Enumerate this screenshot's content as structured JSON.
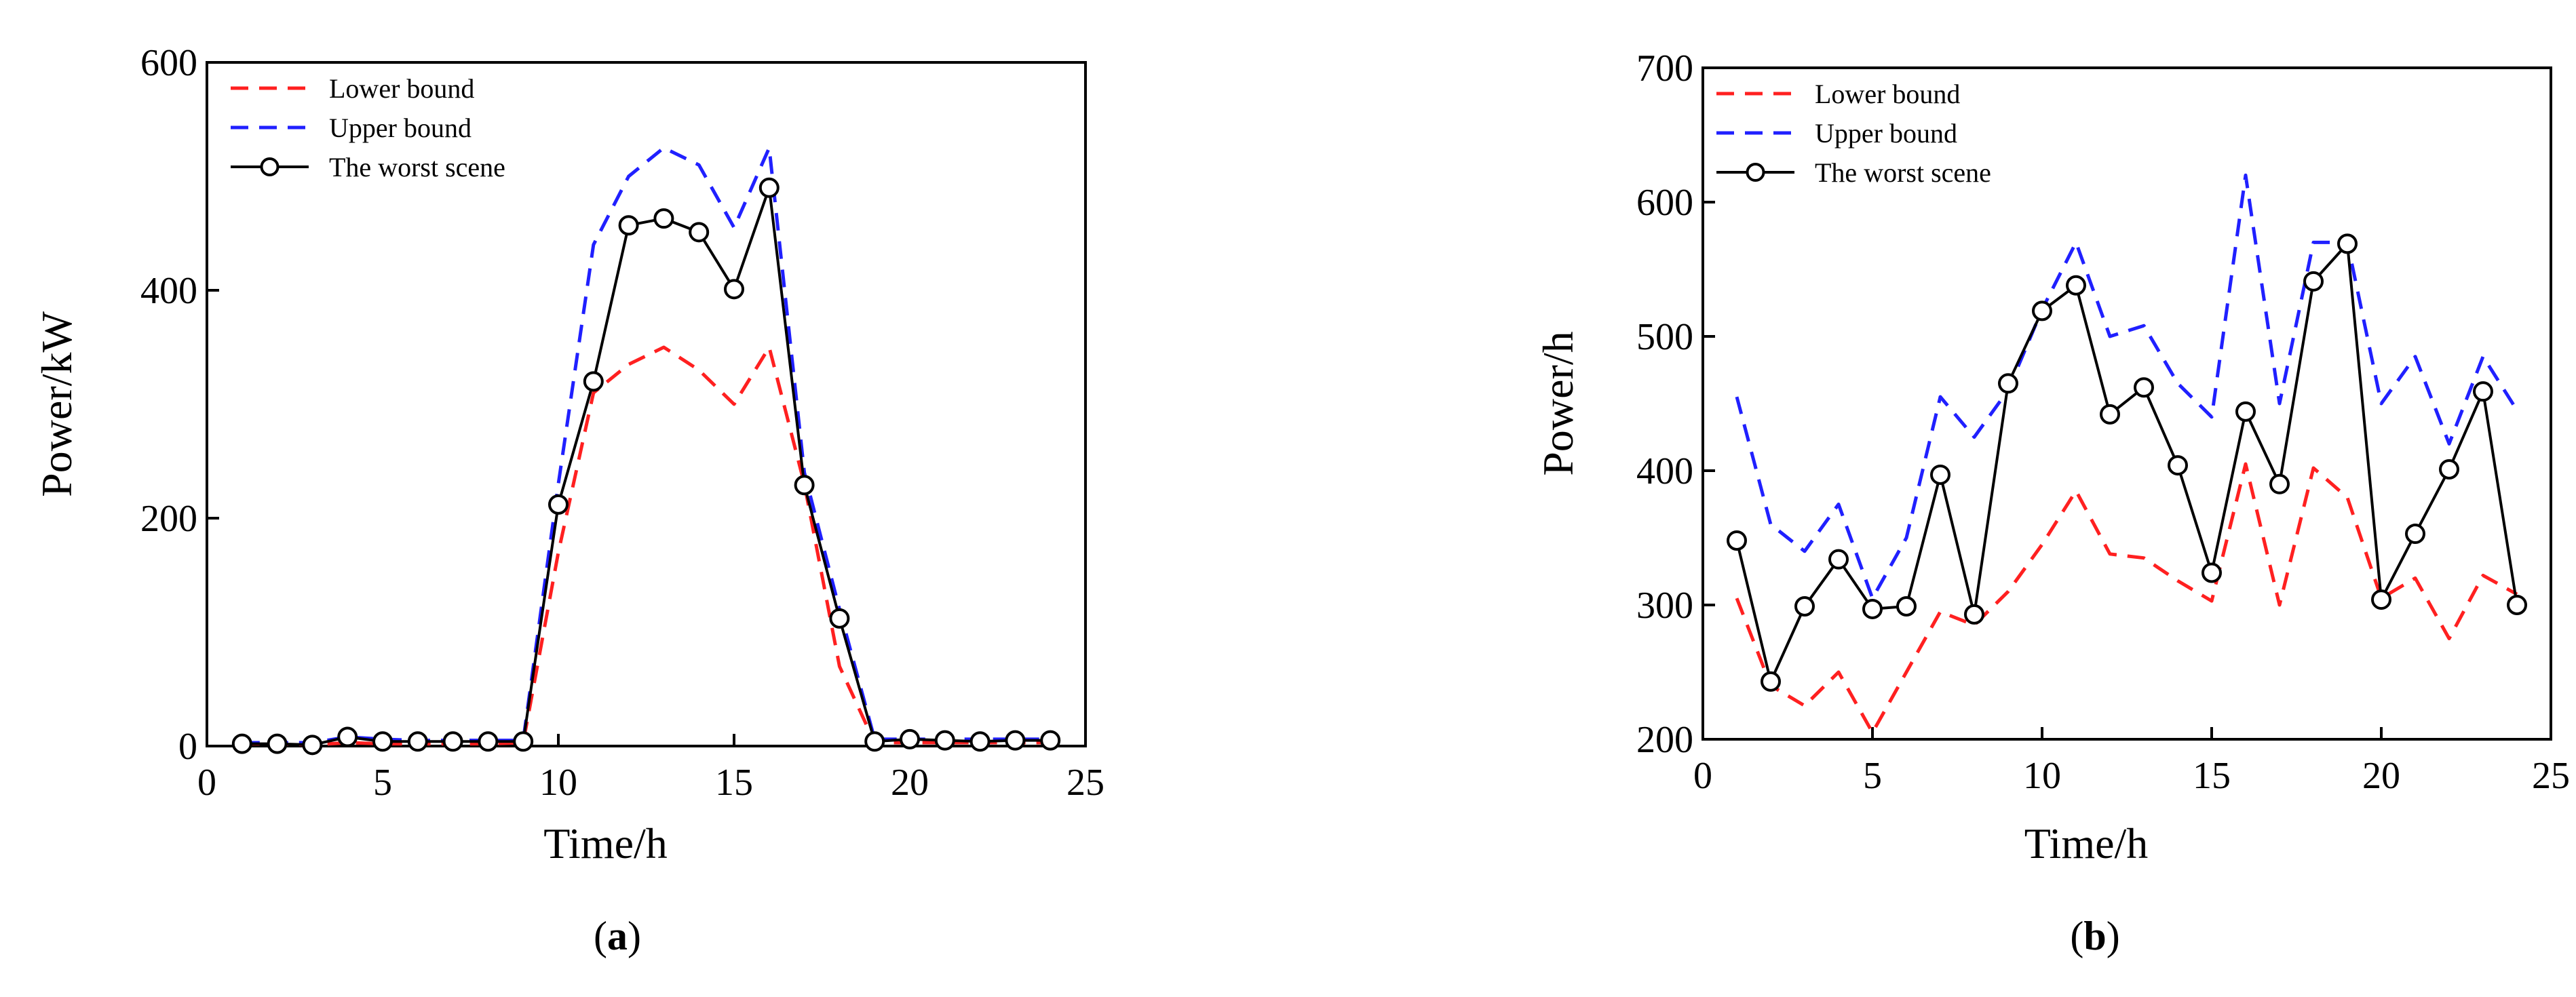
{
  "chart_data": [
    {
      "type": "line",
      "caption": "(a)",
      "caption_bold": "a",
      "xlabel": "Time/h",
      "ylabel": "Power/kW",
      "xlim": [
        0,
        25
      ],
      "ylim": [
        0,
        600
      ],
      "xticks": [
        0,
        5,
        10,
        15,
        20,
        25
      ],
      "yticks": [
        0,
        200,
        400,
        600
      ],
      "grid": false,
      "legend_position": "top-left",
      "x": [
        1,
        2,
        3,
        4,
        5,
        6,
        7,
        8,
        9,
        10,
        11,
        12,
        13,
        14,
        15,
        16,
        17,
        18,
        19,
        20,
        21,
        22,
        23,
        24
      ],
      "series": [
        {
          "name": "Lower bound",
          "color": "#ff2020",
          "style": "dashed",
          "marker": "none",
          "values": [
            2,
            2,
            1,
            3,
            2,
            2,
            2,
            2,
            3,
            170,
            310,
            335,
            350,
            330,
            300,
            350,
            230,
            70,
            3,
            3,
            3,
            3,
            3,
            3
          ]
        },
        {
          "name": "Upper bound",
          "color": "#2020ff",
          "style": "dashed",
          "marker": "none",
          "values": [
            3,
            3,
            3,
            8,
            6,
            5,
            5,
            5,
            5,
            230,
            440,
            500,
            525,
            510,
            455,
            525,
            240,
            120,
            6,
            6,
            6,
            6,
            6,
            6
          ]
        },
        {
          "name": "The worst scene",
          "color": "#000000",
          "style": "solid",
          "marker": "circle",
          "values": [
            2,
            2,
            1,
            8,
            4,
            4,
            4,
            4,
            4,
            212,
            320,
            457,
            463,
            451,
            401,
            490,
            229,
            112,
            4,
            6,
            5,
            4,
            5,
            5
          ]
        }
      ]
    },
    {
      "type": "line",
      "caption": "(b)",
      "caption_bold": "b",
      "xlabel": "Time/h",
      "ylabel": "Power/h",
      "xlim": [
        0,
        25
      ],
      "ylim": [
        200,
        700
      ],
      "xticks": [
        0,
        5,
        10,
        15,
        20,
        25
      ],
      "yticks": [
        200,
        300,
        400,
        500,
        600,
        700
      ],
      "grid": false,
      "legend_position": "top-left",
      "x": [
        1,
        2,
        3,
        4,
        5,
        6,
        7,
        8,
        9,
        10,
        11,
        12,
        13,
        14,
        15,
        16,
        17,
        18,
        19,
        20,
        21,
        22,
        23,
        24
      ],
      "series": [
        {
          "name": "Lower bound",
          "color": "#ff2020",
          "style": "dashed",
          "marker": "none",
          "values": [
            305,
            240,
            225,
            250,
            205,
            250,
            295,
            285,
            310,
            345,
            385,
            338,
            335,
            318,
            303,
            405,
            300,
            402,
            380,
            305,
            320,
            275,
            322,
            308
          ]
        },
        {
          "name": "Upper bound",
          "color": "#2020ff",
          "style": "dashed",
          "marker": "none",
          "values": [
            455,
            360,
            340,
            375,
            305,
            350,
            455,
            425,
            460,
            520,
            570,
            500,
            508,
            465,
            440,
            620,
            450,
            570,
            570,
            450,
            485,
            420,
            485,
            445
          ]
        },
        {
          "name": "The worst scene",
          "color": "#000000",
          "style": "solid",
          "marker": "circle",
          "values": [
            348,
            243,
            299,
            334,
            297,
            299,
            397,
            293,
            465,
            519,
            538,
            442,
            462,
            404,
            324,
            444,
            390,
            541,
            569,
            304,
            353,
            401,
            459,
            300
          ]
        }
      ]
    }
  ]
}
